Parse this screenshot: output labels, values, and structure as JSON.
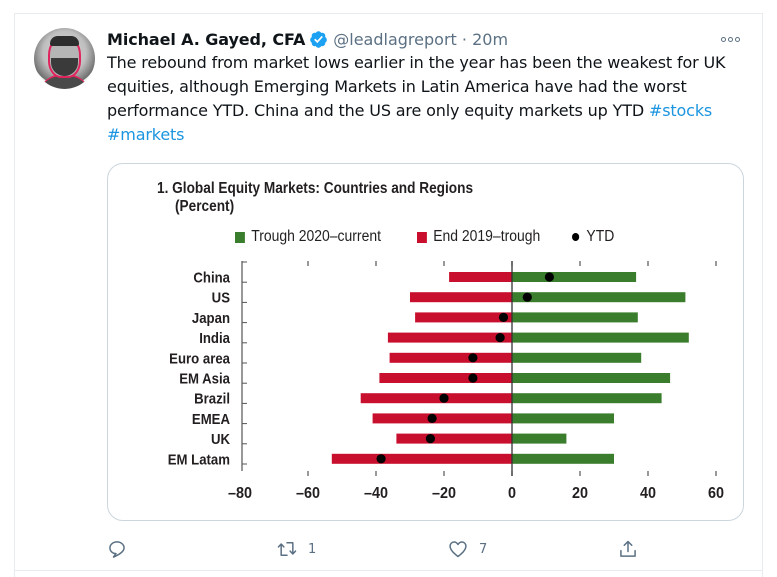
{
  "tweet": {
    "author_name": "Michael A. Gayed, CFA",
    "verified": true,
    "handle": "@leadlagreport",
    "separator": "·",
    "time": "20m",
    "text": "The rebound from market lows earlier in the year has been the weakest for UK equities, although Emerging Markets in Latin America have had the worst performance YTD. China and the US are only equity markets up YTD ",
    "hashtags": [
      "#stocks",
      "#markets"
    ],
    "more_icon": "more-horizontal-icon",
    "actions": {
      "reply": {
        "icon": "reply-icon",
        "count": ""
      },
      "retweet": {
        "icon": "retweet-icon",
        "count": "1"
      },
      "like": {
        "icon": "heart-icon",
        "count": "7"
      },
      "share": {
        "icon": "share-icon",
        "count": ""
      }
    }
  },
  "colors": {
    "green": "#3a7d2c",
    "red": "#c8102e",
    "dot": "#000000",
    "hashtag": "#1b95e0",
    "muted": "#5b7083",
    "verified": "#1da1f2"
  },
  "chart_data": {
    "type": "bar",
    "orientation": "horizontal",
    "title": "1. Global Equity Markets: Countries and Regions",
    "subtitle": "(Percent)",
    "xlabel": "",
    "ylabel": "",
    "xlim": [
      -80,
      60
    ],
    "xticks": [
      -80,
      -60,
      -40,
      -20,
      0,
      20,
      40,
      60
    ],
    "grid": false,
    "legend_position": "top",
    "categories": [
      "China",
      "US",
      "Japan",
      "India",
      "Euro area",
      "EM Asia",
      "Brazil",
      "EMEA",
      "UK",
      "EM Latam"
    ],
    "series": [
      {
        "name": "Trough 2020–current",
        "type": "bar",
        "color": "#3a7d2c",
        "values": [
          36.5,
          51,
          37,
          52,
          38,
          46.5,
          44,
          30,
          16,
          30
        ]
      },
      {
        "name": "End 2019–trough",
        "type": "bar",
        "color": "#c8102e",
        "values": [
          -18.5,
          -30,
          -28.5,
          -36.5,
          -36,
          -39,
          -44.5,
          -41,
          -34,
          -53
        ]
      },
      {
        "name": "YTD",
        "type": "scatter",
        "color": "#000000",
        "values": [
          11,
          4.5,
          -2.5,
          -3.5,
          -11.5,
          -11.5,
          -20,
          -23.5,
          -24,
          -38.5
        ]
      }
    ]
  }
}
